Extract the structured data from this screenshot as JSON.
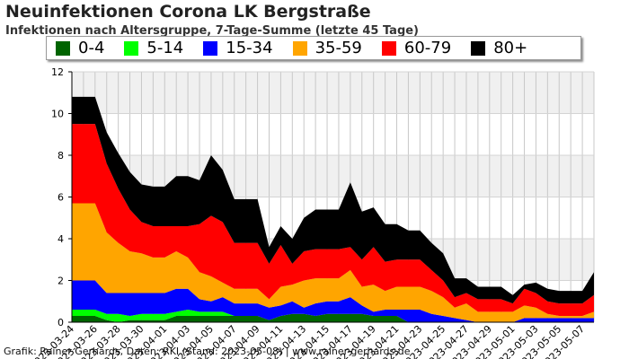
{
  "header": {
    "title": "Neuinfektionen Corona LK Bergstraße",
    "subtitle": "Infektionen nach Altersgruppe, 7-Tage-Summe (letzte 45 Tage)"
  },
  "footer": {
    "credit": "Grafik: Rainer Gerhards, Daten: RKI (Stand: 2023-05-08) | www.rainer-gerhards.de"
  },
  "chart_data": {
    "type": "area",
    "stacked": true,
    "title": "Neuinfektionen Corona LK Bergstraße",
    "subtitle": "Infektionen nach Altersgruppe, 7-Tage-Summe (letzte 45 Tage)",
    "xlabel": "",
    "ylabel": "",
    "ylim": [
      0,
      12
    ],
    "yticks": [
      0,
      2,
      4,
      6,
      8,
      10,
      12
    ],
    "grid": true,
    "legend_position": "top",
    "x": [
      "2023-03-24",
      "2023-03-25",
      "2023-03-26",
      "2023-03-27",
      "2023-03-28",
      "2023-03-29",
      "2023-03-30",
      "2023-03-31",
      "2023-04-01",
      "2023-04-02",
      "2023-04-03",
      "2023-04-04",
      "2023-04-05",
      "2023-04-06",
      "2023-04-07",
      "2023-04-08",
      "2023-04-09",
      "2023-04-10",
      "2023-04-11",
      "2023-04-12",
      "2023-04-13",
      "2023-04-14",
      "2023-04-15",
      "2023-04-16",
      "2023-04-17",
      "2023-04-18",
      "2023-04-19",
      "2023-04-20",
      "2023-04-21",
      "2023-04-22",
      "2023-04-23",
      "2023-04-24",
      "2023-04-25",
      "2023-04-26",
      "2023-04-27",
      "2023-04-28",
      "2023-04-29",
      "2023-04-30",
      "2023-05-01",
      "2023-05-02",
      "2023-05-03",
      "2023-05-04",
      "2023-05-05",
      "2023-05-06",
      "2023-05-07",
      "2023-05-08"
    ],
    "xtick_labels": [
      "2023-03-24",
      "2023-03-26",
      "2023-03-28",
      "2023-03-30",
      "2023-04-01",
      "2023-04-03",
      "2023-04-05",
      "2023-04-07",
      "2023-04-09",
      "2023-04-11",
      "2023-04-13",
      "2023-04-15",
      "2023-04-17",
      "2023-04-19",
      "2023-04-21",
      "2023-04-23",
      "2023-04-25",
      "2023-04-27",
      "2023-04-29",
      "2023-05-01",
      "2023-05-03",
      "2023-05-05",
      "2023-05-07"
    ],
    "series": [
      {
        "name": "0-4",
        "color": "#006400",
        "values": [
          0.3,
          0.3,
          0.3,
          0.1,
          0,
          0.1,
          0.1,
          0.1,
          0.1,
          0.3,
          0.3,
          0.3,
          0.3,
          0.3,
          0.3,
          0.3,
          0.3,
          0.1,
          0.3,
          0.4,
          0.4,
          0.3,
          0.4,
          0.4,
          0.4,
          0.4,
          0.3,
          0.3,
          0.3,
          0,
          0,
          0,
          0,
          0,
          0,
          0,
          0,
          0,
          0,
          0,
          0,
          0,
          0,
          0,
          0,
          0
        ]
      },
      {
        "name": "5-14",
        "color": "#00ff00",
        "values": [
          0.3,
          0.3,
          0.3,
          0.3,
          0.4,
          0.2,
          0.3,
          0.3,
          0.3,
          0.2,
          0.3,
          0.2,
          0.2,
          0.2,
          0,
          0,
          0,
          0,
          0,
          0,
          0,
          0,
          0,
          0,
          0,
          0,
          0,
          0,
          0,
          0,
          0,
          0,
          0,
          0,
          0,
          0,
          0,
          0,
          0,
          0,
          0,
          0,
          0,
          0,
          0,
          0
        ]
      },
      {
        "name": "15-34",
        "color": "#0000ff",
        "values": [
          1.4,
          1.4,
          1.4,
          1.0,
          1.0,
          1.1,
          1.0,
          1.0,
          1.0,
          1.1,
          1.0,
          0.6,
          0.5,
          0.7,
          0.6,
          0.6,
          0.6,
          0.6,
          0.5,
          0.6,
          0.3,
          0.6,
          0.6,
          0.6,
          0.8,
          0.4,
          0.2,
          0.3,
          0.3,
          0.6,
          0.6,
          0.4,
          0.3,
          0.2,
          0.1,
          0,
          0,
          0,
          0,
          0.2,
          0.2,
          0.2,
          0.2,
          0.2,
          0.2,
          0.2
        ]
      },
      {
        "name": "35-59",
        "color": "#ffa500",
        "values": [
          3.7,
          3.7,
          3.7,
          2.9,
          2.4,
          2.0,
          1.9,
          1.7,
          1.7,
          1.8,
          1.5,
          1.3,
          1.2,
          0.7,
          0.7,
          0.7,
          0.7,
          0.4,
          0.9,
          0.8,
          1.3,
          1.2,
          1.1,
          1.1,
          1.3,
          0.9,
          1.3,
          0.9,
          1.1,
          1.1,
          1.1,
          1.1,
          0.9,
          0.5,
          0.8,
          0.5,
          0.5,
          0.5,
          0.5,
          0.6,
          0.5,
          0.2,
          0.1,
          0.1,
          0.1,
          0.3
        ]
      },
      {
        "name": "60-79",
        "color": "#ff0000",
        "values": [
          3.8,
          3.8,
          3.8,
          3.3,
          2.6,
          2.0,
          1.5,
          1.5,
          1.5,
          1.2,
          1.5,
          2.3,
          2.9,
          2.9,
          2.2,
          2.2,
          2.2,
          1.7,
          2.0,
          1.0,
          1.4,
          1.4,
          1.4,
          1.4,
          1.1,
          1.3,
          1.8,
          1.4,
          1.3,
          1.3,
          1.3,
          1.0,
          0.8,
          0.5,
          0.5,
          0.6,
          0.6,
          0.6,
          0.4,
          0.8,
          0.7,
          0.6,
          0.6,
          0.6,
          0.6,
          0.8
        ]
      },
      {
        "name": "80+",
        "color": "#000000",
        "values": [
          1.3,
          1.3,
          1.3,
          1.5,
          1.7,
          1.8,
          1.8,
          1.9,
          1.9,
          2.4,
          2.4,
          2.1,
          2.9,
          2.5,
          2.1,
          2.1,
          2.1,
          0.8,
          0.9,
          1.2,
          1.6,
          1.9,
          1.9,
          1.9,
          3.1,
          2.3,
          1.9,
          1.8,
          1.7,
          1.4,
          1.4,
          1.3,
          1.3,
          0.9,
          0.7,
          0.6,
          0.6,
          0.6,
          0.4,
          0.2,
          0.5,
          0.6,
          0.6,
          0.6,
          0.6,
          1.1
        ]
      }
    ]
  }
}
